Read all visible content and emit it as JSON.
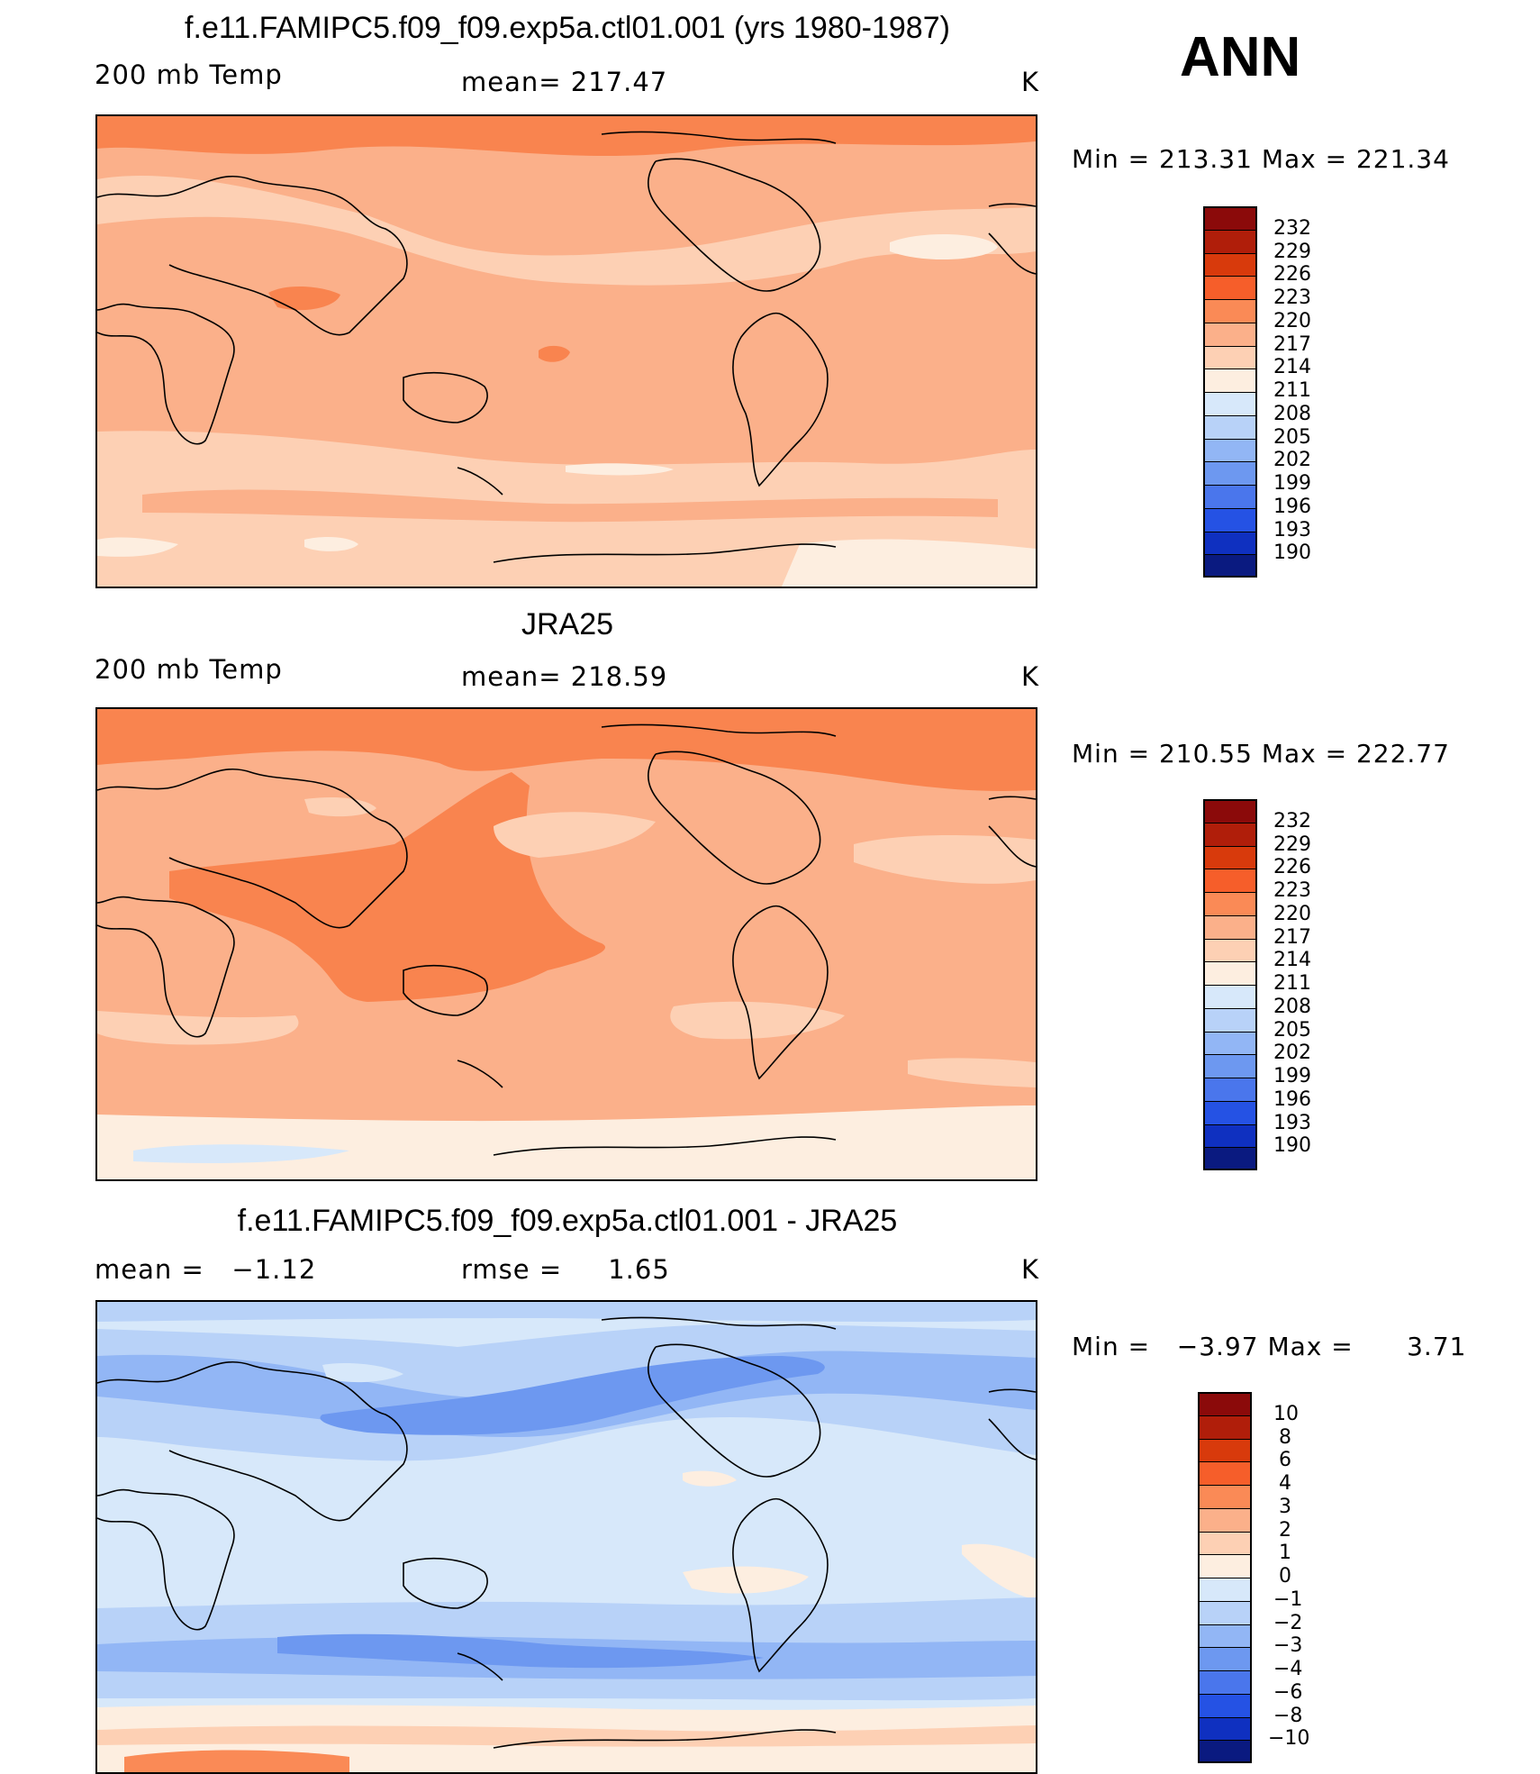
{
  "season": "ANN",
  "panels": [
    {
      "title": "f.e11.FAMIPC5.f09_f09.exp5a.ctl01.001 (yrs 1980-1987)",
      "left": "200 mb Temp",
      "center": "mean= 217.47",
      "units": "K",
      "minmax": "Min = 213.31 Max = 221.34",
      "colorbar": {
        "labels": [
          "232",
          "229",
          "226",
          "223",
          "220",
          "217",
          "214",
          "211",
          "208",
          "205",
          "202",
          "199",
          "196",
          "193",
          "190"
        ],
        "colors": [
          "#8b0a0a",
          "#b01e0a",
          "#d83a0c",
          "#f65e2a",
          "#fa8a56",
          "#fbb08a",
          "#fdd0b4",
          "#fdeee0",
          "#d7e8fa",
          "#b8d2f8",
          "#92b6f5",
          "#6d98f0",
          "#4a76ec",
          "#2552e4",
          "#0f30c0",
          "#0a1a80"
        ]
      },
      "map": {
        "base": "#fbb08a",
        "legend_min": 190,
        "legend_max": 232
      }
    },
    {
      "title": "JRA25",
      "left": "200 mb Temp",
      "center": "mean= 218.59",
      "units": "K",
      "minmax": "Min = 210.55 Max = 222.77",
      "colorbar": {
        "labels": [
          "232",
          "229",
          "226",
          "223",
          "220",
          "217",
          "214",
          "211",
          "208",
          "205",
          "202",
          "199",
          "196",
          "193",
          "190"
        ],
        "colors": [
          "#8b0a0a",
          "#b01e0a",
          "#d83a0c",
          "#f65e2a",
          "#fa8a56",
          "#fbb08a",
          "#fdd0b4",
          "#fdeee0",
          "#d7e8fa",
          "#b8d2f8",
          "#92b6f5",
          "#6d98f0",
          "#4a76ec",
          "#2552e4",
          "#0f30c0",
          "#0a1a80"
        ]
      },
      "map": {
        "base": "#fbb08a",
        "legend_min": 190,
        "legend_max": 232
      }
    },
    {
      "title": "f.e11.FAMIPC5.f09_f09.exp5a.ctl01.001 - JRA25",
      "left": "mean =   −1.12",
      "center": "rmse =     1.65",
      "units": "K",
      "minmax": "Min =   −3.97 Max =      3.71",
      "colorbar": {
        "labels": [
          "10",
          "8",
          "6",
          "4",
          "3",
          "2",
          "1",
          "0",
          "−1",
          "−2",
          "−3",
          "−4",
          "−6",
          "−8",
          "−10"
        ],
        "colors": [
          "#8b0a0a",
          "#b01e0a",
          "#d83a0c",
          "#f65e2a",
          "#fa8a56",
          "#fbb08a",
          "#fdd0b4",
          "#fdeee0",
          "#d7e8fa",
          "#b8d2f8",
          "#92b6f5",
          "#6d98f0",
          "#4a76ec",
          "#2552e4",
          "#0f30c0",
          "#0a1a80"
        ]
      },
      "map": {
        "base": "#d7e8fa",
        "legend_min": -10,
        "legend_max": 10
      }
    }
  ]
}
